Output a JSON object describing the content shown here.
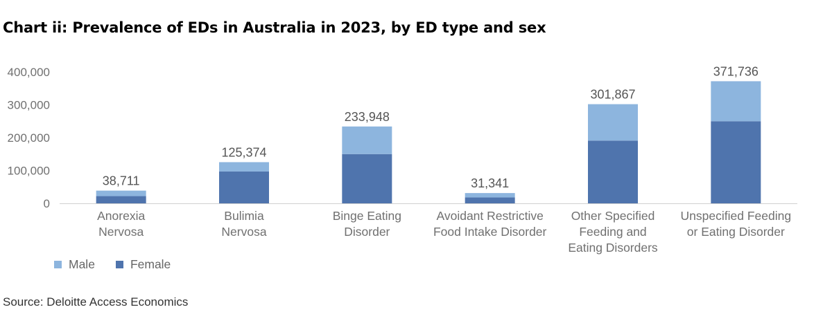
{
  "title": "Chart ii: Prevalence of EDs in Australia in 2023, by ED type and sex",
  "source": "Source: Deloitte Access Economics",
  "colors": {
    "male": "#8db5de",
    "female": "#4f74ad",
    "axis": "#d0d0d0"
  },
  "chart_data": {
    "type": "bar",
    "stacked": true,
    "categories": [
      [
        "Anorexia",
        "Nervosa"
      ],
      [
        "Bulimia",
        "Nervosa"
      ],
      [
        "Binge Eating",
        "Disorder"
      ],
      [
        "Avoidant Restrictive",
        "Food Intake Disorder"
      ],
      [
        "Other Specified",
        "Feeding and",
        "Eating Disorders"
      ],
      [
        "Unspecified Feeding",
        "or Eating Disorder"
      ]
    ],
    "series": [
      {
        "name": "Female",
        "values": [
          22000,
          97000,
          150000,
          18000,
          191000,
          250000
        ]
      },
      {
        "name": "Male",
        "values": [
          16711,
          28374,
          83948,
          13341,
          110867,
          121736
        ]
      }
    ],
    "totals": [
      "38,711",
      "125,374",
      "233,948",
      "31,341",
      "301,867",
      "371,736"
    ],
    "ylim": [
      0,
      400000
    ],
    "yticks": [
      "0",
      "100,000",
      "200,000",
      "300,000",
      "400,000"
    ],
    "ytick_values": [
      0,
      100000,
      200000,
      300000,
      400000
    ],
    "legend": [
      "Male",
      "Female"
    ],
    "legend_position": "bottom-left",
    "grid": false,
    "xlabel": "",
    "ylabel": ""
  }
}
